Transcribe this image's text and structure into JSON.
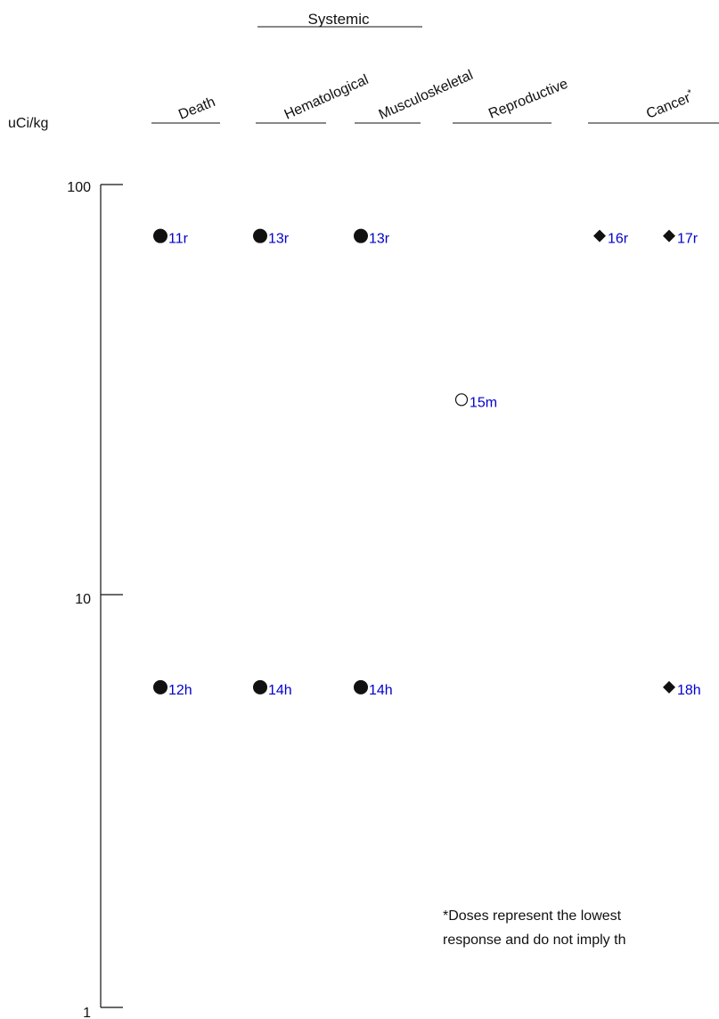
{
  "chart_data": {
    "type": "scatter",
    "title": "",
    "ylabel": "uCi/kg",
    "y_scale": "log",
    "ylim": [
      1,
      100
    ],
    "y_ticks": [
      "100",
      "10",
      "1"
    ],
    "group_header": "Systemic",
    "categories": [
      "Death",
      "Hematological",
      "Musculoskeletal",
      "Reproductive",
      "Cancer"
    ],
    "cancer_marker": "*",
    "points": [
      {
        "category": "Death",
        "column": 0,
        "y": 75,
        "label": "11r",
        "marker": "circle-filled"
      },
      {
        "category": "Hematological",
        "column": 0,
        "y": 75,
        "label": "13r",
        "marker": "circle-filled"
      },
      {
        "category": "Musculoskeletal",
        "column": 0,
        "y": 75,
        "label": "13r",
        "marker": "circle-filled"
      },
      {
        "category": "Reproductive",
        "column": 0,
        "y": 30,
        "label": "15m",
        "marker": "circle-open"
      },
      {
        "category": "Cancer",
        "column": 0,
        "y": 75,
        "label": "16r",
        "marker": "diamond-filled"
      },
      {
        "category": "Cancer",
        "column": 1,
        "y": 75,
        "label": "17r",
        "marker": "diamond-filled"
      },
      {
        "category": "Death",
        "column": 0,
        "y": 6,
        "label": "12h",
        "marker": "circle-filled"
      },
      {
        "category": "Hematological",
        "column": 0,
        "y": 6,
        "label": "14h",
        "marker": "circle-filled"
      },
      {
        "category": "Musculoskeletal",
        "column": 0,
        "y": 6,
        "label": "14h",
        "marker": "circle-filled"
      },
      {
        "category": "Cancer",
        "column": 1,
        "y": 6,
        "label": "18h",
        "marker": "diamond-filled"
      }
    ],
    "footnote": [
      "*Doses represent the lowest",
      "response and do not imply th"
    ]
  }
}
